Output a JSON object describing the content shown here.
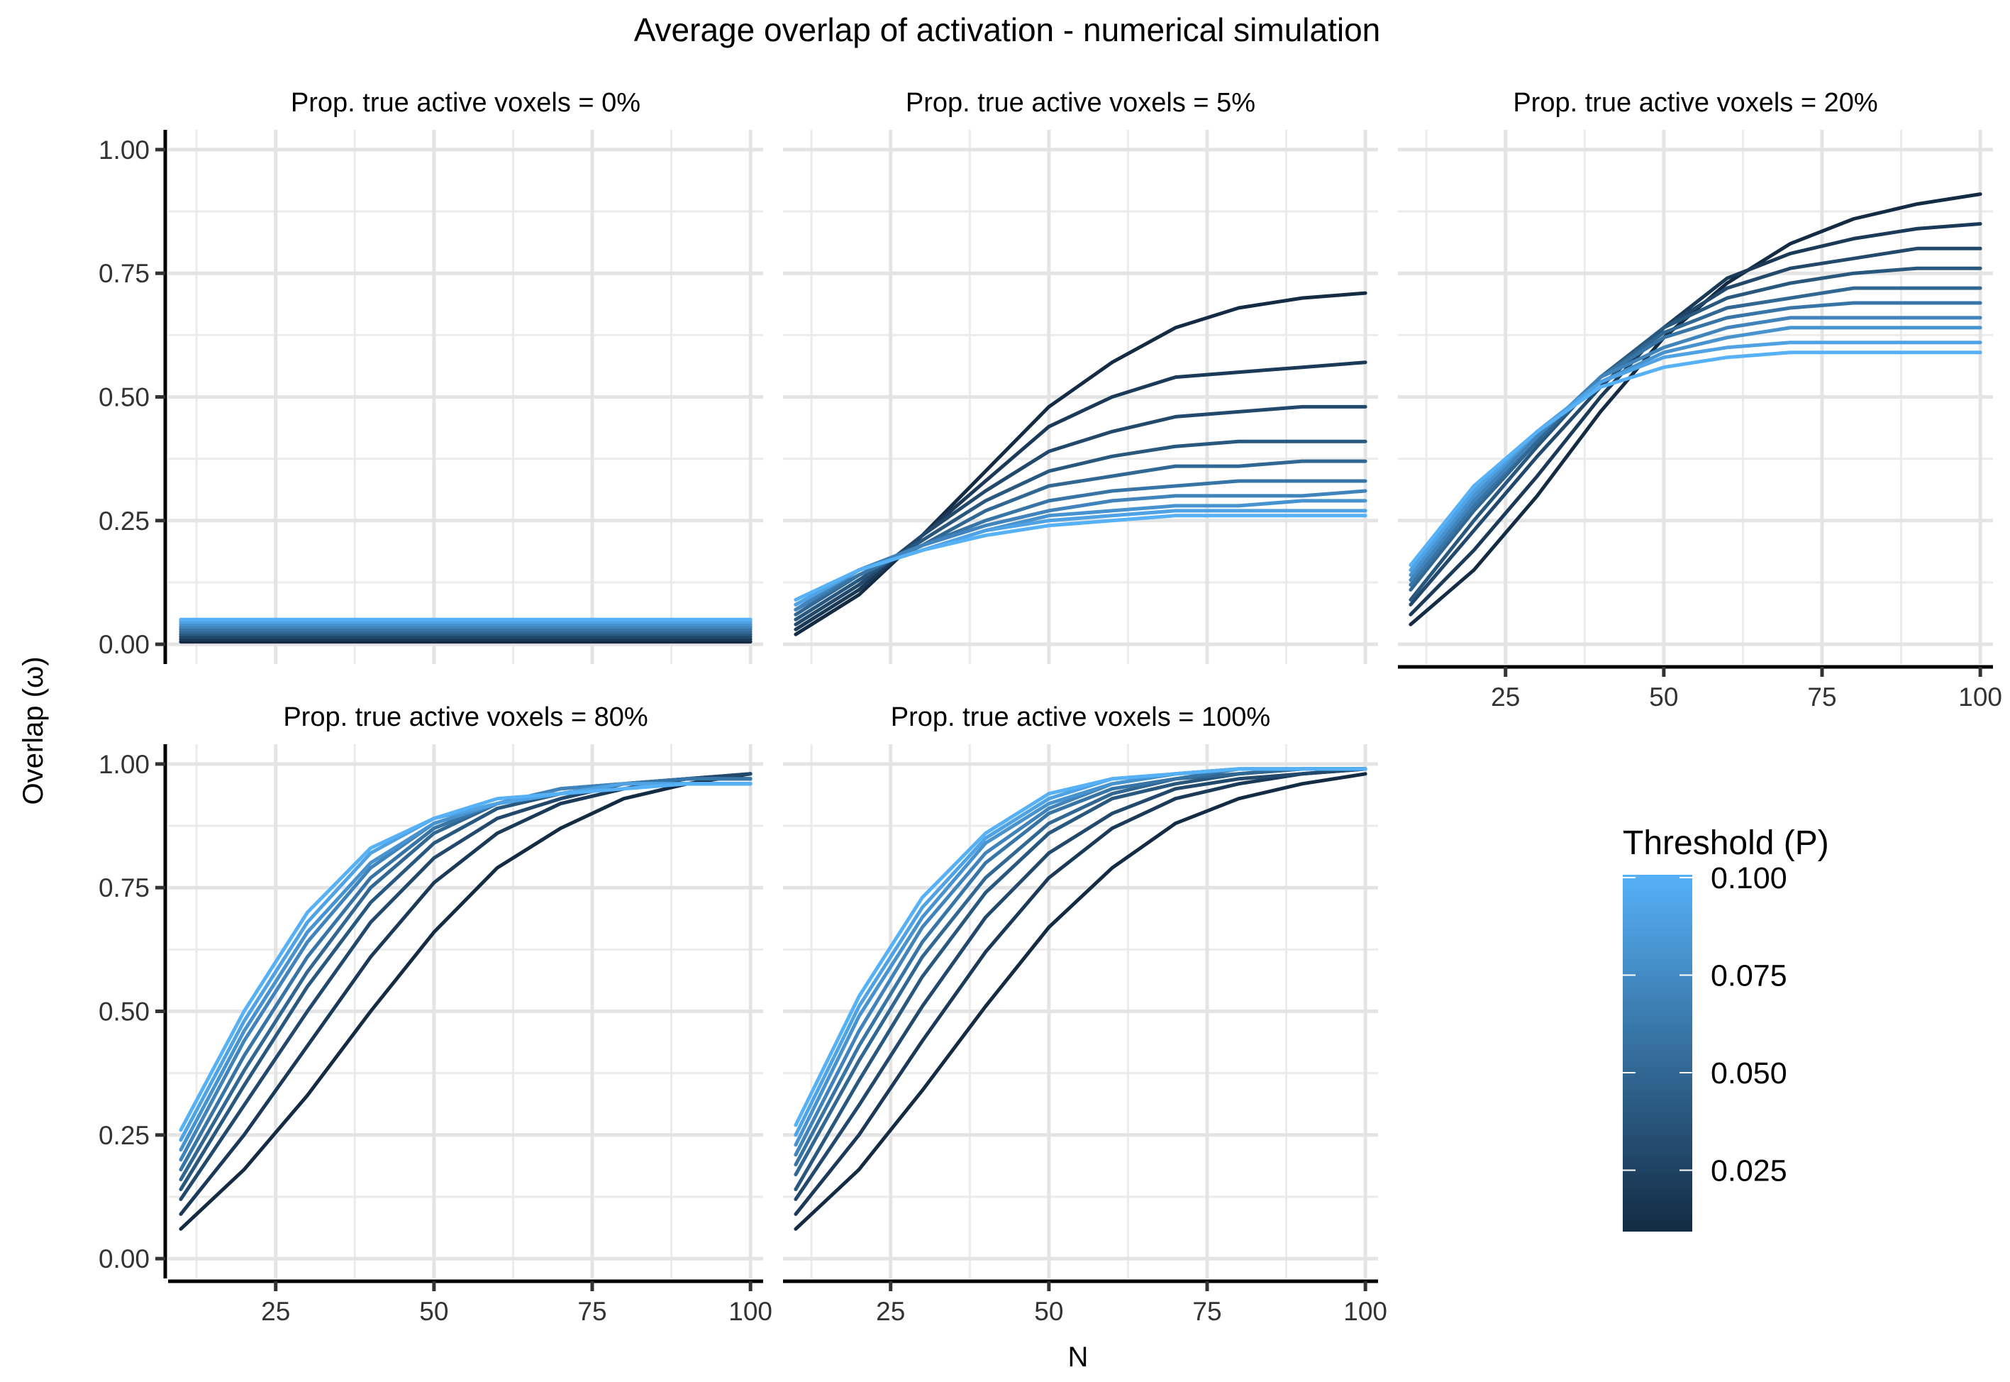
{
  "chart_data": {
    "type": "line",
    "title": "Average overlap of activation - numerical simulation",
    "xlabel": "N",
    "ylabel": "Overlap (ω)",
    "x": [
      10,
      20,
      30,
      40,
      50,
      60,
      70,
      80,
      90,
      100
    ],
    "xlim": [
      8,
      102
    ],
    "ylim": [
      -0.04,
      1.04
    ],
    "x_ticks": [
      "25",
      "50",
      "75",
      "100"
    ],
    "y_ticks": [
      "0.00",
      "0.25",
      "0.50",
      "0.75",
      "1.00"
    ],
    "grid": true,
    "legend": {
      "title": "Threshold (P)",
      "type": "colorbar",
      "ticks": [
        "0.025",
        "0.050",
        "0.075",
        "0.100"
      ],
      "color_low": "#132B43",
      "color_high": "#56B1F7",
      "position": "right"
    },
    "thresholds": [
      0.01,
      0.02,
      0.03,
      0.04,
      0.05,
      0.06,
      0.07,
      0.08,
      0.09,
      0.1
    ],
    "panels": [
      {
        "strip": "Prop. true active voxels = 0%",
        "series": [
          {
            "threshold": 0.01,
            "values": [
              0.005,
              0.005,
              0.005,
              0.005,
              0.005,
              0.005,
              0.005,
              0.005,
              0.005,
              0.005
            ]
          },
          {
            "threshold": 0.02,
            "values": [
              0.01,
              0.01,
              0.01,
              0.01,
              0.01,
              0.01,
              0.01,
              0.01,
              0.01,
              0.01
            ]
          },
          {
            "threshold": 0.03,
            "values": [
              0.015,
              0.015,
              0.015,
              0.015,
              0.015,
              0.015,
              0.015,
              0.015,
              0.015,
              0.015
            ]
          },
          {
            "threshold": 0.04,
            "values": [
              0.02,
              0.02,
              0.02,
              0.02,
              0.02,
              0.02,
              0.02,
              0.02,
              0.02,
              0.02
            ]
          },
          {
            "threshold": 0.05,
            "values": [
              0.025,
              0.025,
              0.025,
              0.025,
              0.025,
              0.025,
              0.025,
              0.025,
              0.025,
              0.025
            ]
          },
          {
            "threshold": 0.06,
            "values": [
              0.03,
              0.03,
              0.03,
              0.03,
              0.03,
              0.03,
              0.03,
              0.03,
              0.03,
              0.03
            ]
          },
          {
            "threshold": 0.07,
            "values": [
              0.035,
              0.035,
              0.035,
              0.035,
              0.035,
              0.035,
              0.035,
              0.035,
              0.035,
              0.035
            ]
          },
          {
            "threshold": 0.08,
            "values": [
              0.04,
              0.04,
              0.04,
              0.04,
              0.04,
              0.04,
              0.04,
              0.04,
              0.04,
              0.04
            ]
          },
          {
            "threshold": 0.09,
            "values": [
              0.045,
              0.045,
              0.045,
              0.045,
              0.045,
              0.045,
              0.045,
              0.045,
              0.045,
              0.045
            ]
          },
          {
            "threshold": 0.1,
            "values": [
              0.05,
              0.05,
              0.05,
              0.05,
              0.05,
              0.05,
              0.05,
              0.05,
              0.05,
              0.05
            ]
          }
        ]
      },
      {
        "strip": "Prop. true active voxels = 5%",
        "series": [
          {
            "threshold": 0.01,
            "values": [
              0.02,
              0.1,
              0.22,
              0.35,
              0.48,
              0.57,
              0.64,
              0.68,
              0.7,
              0.71
            ]
          },
          {
            "threshold": 0.02,
            "values": [
              0.03,
              0.11,
              0.22,
              0.33,
              0.44,
              0.5,
              0.54,
              0.55,
              0.56,
              0.57
            ]
          },
          {
            "threshold": 0.03,
            "values": [
              0.04,
              0.12,
              0.22,
              0.31,
              0.39,
              0.43,
              0.46,
              0.47,
              0.48,
              0.48
            ]
          },
          {
            "threshold": 0.04,
            "values": [
              0.05,
              0.13,
              0.21,
              0.29,
              0.35,
              0.38,
              0.4,
              0.41,
              0.41,
              0.41
            ]
          },
          {
            "threshold": 0.05,
            "values": [
              0.06,
              0.14,
              0.2,
              0.27,
              0.32,
              0.34,
              0.36,
              0.36,
              0.37,
              0.37
            ]
          },
          {
            "threshold": 0.06,
            "values": [
              0.07,
              0.14,
              0.2,
              0.25,
              0.29,
              0.31,
              0.32,
              0.33,
              0.33,
              0.33
            ]
          },
          {
            "threshold": 0.07,
            "values": [
              0.07,
              0.15,
              0.2,
              0.24,
              0.27,
              0.29,
              0.3,
              0.3,
              0.3,
              0.31
            ]
          },
          {
            "threshold": 0.08,
            "values": [
              0.08,
              0.15,
              0.19,
              0.23,
              0.26,
              0.27,
              0.28,
              0.28,
              0.29,
              0.29
            ]
          },
          {
            "threshold": 0.09,
            "values": [
              0.08,
              0.15,
              0.19,
              0.23,
              0.25,
              0.26,
              0.27,
              0.27,
              0.27,
              0.27
            ]
          },
          {
            "threshold": 0.1,
            "values": [
              0.09,
              0.15,
              0.19,
              0.22,
              0.24,
              0.25,
              0.26,
              0.26,
              0.26,
              0.26
            ]
          }
        ]
      },
      {
        "strip": "Prop. true active voxels = 20%",
        "series": [
          {
            "threshold": 0.01,
            "values": [
              0.04,
              0.15,
              0.3,
              0.47,
              0.62,
              0.73,
              0.81,
              0.86,
              0.89,
              0.91
            ]
          },
          {
            "threshold": 0.02,
            "values": [
              0.06,
              0.19,
              0.34,
              0.5,
              0.64,
              0.74,
              0.79,
              0.82,
              0.84,
              0.85
            ]
          },
          {
            "threshold": 0.03,
            "values": [
              0.08,
              0.23,
              0.38,
              0.52,
              0.64,
              0.72,
              0.76,
              0.78,
              0.8,
              0.8
            ]
          },
          {
            "threshold": 0.04,
            "values": [
              0.09,
              0.25,
              0.4,
              0.54,
              0.64,
              0.7,
              0.73,
              0.75,
              0.76,
              0.76
            ]
          },
          {
            "threshold": 0.05,
            "values": [
              0.11,
              0.27,
              0.41,
              0.54,
              0.63,
              0.68,
              0.7,
              0.72,
              0.72,
              0.72
            ]
          },
          {
            "threshold": 0.06,
            "values": [
              0.12,
              0.28,
              0.42,
              0.54,
              0.62,
              0.66,
              0.68,
              0.69,
              0.69,
              0.69
            ]
          },
          {
            "threshold": 0.07,
            "values": [
              0.13,
              0.29,
              0.42,
              0.54,
              0.6,
              0.64,
              0.66,
              0.66,
              0.66,
              0.66
            ]
          },
          {
            "threshold": 0.08,
            "values": [
              0.14,
              0.3,
              0.43,
              0.53,
              0.59,
              0.62,
              0.64,
              0.64,
              0.64,
              0.64
            ]
          },
          {
            "threshold": 0.09,
            "values": [
              0.15,
              0.31,
              0.43,
              0.53,
              0.58,
              0.6,
              0.61,
              0.61,
              0.61,
              0.61
            ]
          },
          {
            "threshold": 0.1,
            "values": [
              0.16,
              0.32,
              0.43,
              0.52,
              0.56,
              0.58,
              0.59,
              0.59,
              0.59,
              0.59
            ]
          }
        ]
      },
      {
        "strip": "Prop. true active voxels = 80%",
        "series": [
          {
            "threshold": 0.01,
            "values": [
              0.06,
              0.18,
              0.33,
              0.5,
              0.66,
              0.79,
              0.87,
              0.93,
              0.96,
              0.98
            ]
          },
          {
            "threshold": 0.02,
            "values": [
              0.09,
              0.25,
              0.43,
              0.61,
              0.76,
              0.86,
              0.92,
              0.95,
              0.97,
              0.98
            ]
          },
          {
            "threshold": 0.03,
            "values": [
              0.12,
              0.31,
              0.5,
              0.68,
              0.81,
              0.89,
              0.93,
              0.96,
              0.97,
              0.98
            ]
          },
          {
            "threshold": 0.04,
            "values": [
              0.14,
              0.35,
              0.55,
              0.72,
              0.84,
              0.91,
              0.94,
              0.96,
              0.97,
              0.97
            ]
          },
          {
            "threshold": 0.05,
            "values": [
              0.16,
              0.38,
              0.58,
              0.75,
              0.86,
              0.92,
              0.94,
              0.96,
              0.97,
              0.97
            ]
          },
          {
            "threshold": 0.06,
            "values": [
              0.18,
              0.41,
              0.61,
              0.77,
              0.87,
              0.92,
              0.95,
              0.96,
              0.97,
              0.97
            ]
          },
          {
            "threshold": 0.07,
            "values": [
              0.2,
              0.44,
              0.64,
              0.79,
              0.88,
              0.92,
              0.95,
              0.96,
              0.96,
              0.96
            ]
          },
          {
            "threshold": 0.08,
            "values": [
              0.22,
              0.46,
              0.66,
              0.8,
              0.88,
              0.92,
              0.94,
              0.96,
              0.96,
              0.96
            ]
          },
          {
            "threshold": 0.09,
            "values": [
              0.24,
              0.48,
              0.68,
              0.82,
              0.89,
              0.92,
              0.94,
              0.96,
              0.96,
              0.96
            ]
          },
          {
            "threshold": 0.1,
            "values": [
              0.26,
              0.5,
              0.7,
              0.83,
              0.89,
              0.93,
              0.94,
              0.95,
              0.96,
              0.96
            ]
          }
        ]
      },
      {
        "strip": "Prop. true active voxels = 100%",
        "series": [
          {
            "threshold": 0.01,
            "values": [
              0.06,
              0.18,
              0.34,
              0.51,
              0.67,
              0.79,
              0.88,
              0.93,
              0.96,
              0.98
            ]
          },
          {
            "threshold": 0.02,
            "values": [
              0.09,
              0.25,
              0.44,
              0.62,
              0.77,
              0.87,
              0.93,
              0.96,
              0.98,
              0.99
            ]
          },
          {
            "threshold": 0.03,
            "values": [
              0.12,
              0.31,
              0.51,
              0.69,
              0.82,
              0.9,
              0.95,
              0.97,
              0.98,
              0.99
            ]
          },
          {
            "threshold": 0.04,
            "values": [
              0.14,
              0.36,
              0.57,
              0.74,
              0.86,
              0.93,
              0.96,
              0.98,
              0.99,
              0.99
            ]
          },
          {
            "threshold": 0.05,
            "values": [
              0.17,
              0.4,
              0.61,
              0.77,
              0.88,
              0.94,
              0.97,
              0.98,
              0.99,
              0.99
            ]
          },
          {
            "threshold": 0.06,
            "values": [
              0.19,
              0.43,
              0.64,
              0.8,
              0.9,
              0.95,
              0.97,
              0.99,
              0.99,
              0.99
            ]
          },
          {
            "threshold": 0.07,
            "values": [
              0.21,
              0.46,
              0.67,
              0.82,
              0.91,
              0.96,
              0.98,
              0.99,
              0.99,
              0.99
            ]
          },
          {
            "threshold": 0.08,
            "values": [
              0.23,
              0.49,
              0.69,
              0.84,
              0.92,
              0.96,
              0.98,
              0.99,
              0.99,
              0.99
            ]
          },
          {
            "threshold": 0.09,
            "values": [
              0.25,
              0.51,
              0.71,
              0.85,
              0.93,
              0.97,
              0.98,
              0.99,
              0.99,
              0.99
            ]
          },
          {
            "threshold": 0.1,
            "values": [
              0.27,
              0.53,
              0.73,
              0.86,
              0.94,
              0.97,
              0.98,
              0.99,
              0.99,
              0.99
            ]
          }
        ]
      }
    ]
  }
}
